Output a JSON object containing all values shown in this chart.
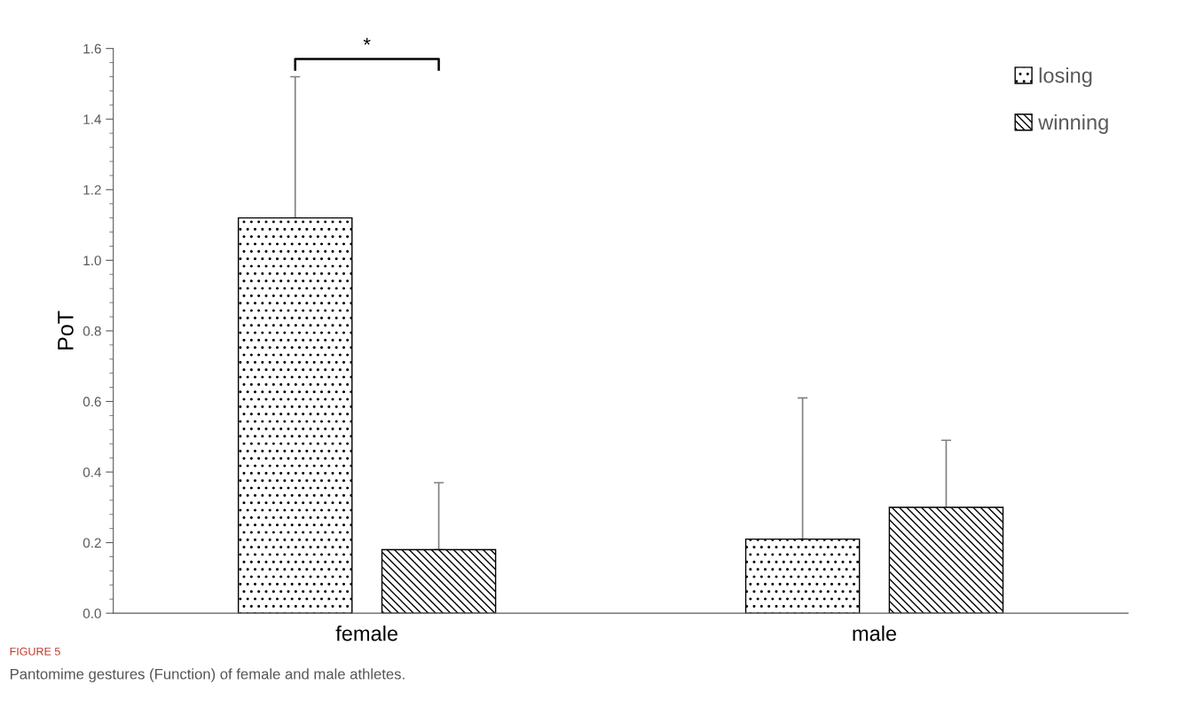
{
  "chart_data": {
    "type": "bar",
    "ylabel": "PoT",
    "categories": [
      "female",
      "male"
    ],
    "series": [
      {
        "name": "losing",
        "color": "#000000",
        "values": [
          1.12,
          0.21
        ],
        "errors": [
          [
            1.12,
            1.52
          ],
          [
            0.21,
            0.61
          ]
        ]
      },
      {
        "name": "winning",
        "color": "#000000",
        "values": [
          0.18,
          0.3
        ],
        "errors": [
          [
            0.18,
            0.37
          ],
          [
            0.3,
            0.49
          ]
        ]
      }
    ],
    "ylim": [
      0,
      1.6
    ],
    "yticks": [
      {
        "value": 0,
        "label": "0.0"
      },
      {
        "value": 0.2,
        "label": "0.2"
      },
      {
        "value": 0.4,
        "label": "0.4"
      },
      {
        "value": 0.6,
        "label": "0.6"
      },
      {
        "value": 0.8,
        "label": "0.8"
      },
      {
        "value": 1.0,
        "label": "1.0"
      },
      {
        "value": 1.2,
        "label": "1.2"
      },
      {
        "value": 1.4,
        "label": "1.4"
      },
      {
        "value": 1.6,
        "label": "1.6"
      }
    ],
    "grid": false,
    "legend": "top right",
    "annotations": [
      "*",
      "FIGURE 5",
      "Pantomime gestures (Function) of female and male athletes."
    ]
  }
}
